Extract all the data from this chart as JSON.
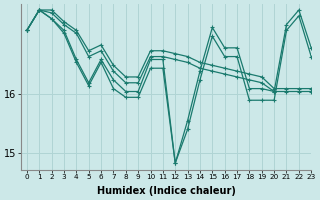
{
  "xlabel": "Humidex (Indice chaleur)",
  "ylabel": "",
  "bg_color": "#cce8e8",
  "line_color": "#1a7a6e",
  "grid_color": "#b0d4d4",
  "xlim": [
    -0.5,
    23
  ],
  "ylim": [
    14.7,
    17.55
  ],
  "yticks": [
    15,
    16
  ],
  "xticks": [
    0,
    1,
    2,
    3,
    4,
    5,
    6,
    7,
    8,
    9,
    10,
    11,
    12,
    13,
    14,
    15,
    16,
    17,
    18,
    19,
    20,
    21,
    22,
    23
  ],
  "series": [
    [
      17.1,
      17.45,
      17.45,
      17.25,
      17.1,
      16.75,
      16.85,
      16.5,
      16.3,
      16.3,
      16.75,
      16.75,
      16.7,
      16.65,
      16.55,
      16.5,
      16.45,
      16.4,
      16.35,
      16.3,
      16.1,
      16.1,
      16.1,
      16.1
    ],
    [
      17.1,
      17.45,
      17.4,
      17.2,
      17.05,
      16.65,
      16.75,
      16.4,
      16.2,
      16.2,
      16.65,
      16.65,
      16.6,
      16.55,
      16.45,
      16.4,
      16.35,
      16.3,
      16.25,
      16.2,
      16.05,
      16.05,
      16.05,
      16.05
    ],
    [
      17.1,
      17.45,
      17.3,
      17.1,
      16.6,
      16.2,
      16.6,
      16.25,
      16.05,
      16.05,
      16.6,
      16.6,
      14.82,
      15.55,
      16.4,
      17.15,
      16.8,
      16.8,
      16.1,
      16.1,
      16.05,
      17.2,
      17.45,
      16.8
    ],
    [
      17.1,
      17.45,
      17.3,
      17.05,
      16.55,
      16.15,
      16.55,
      16.1,
      15.95,
      15.95,
      16.45,
      16.45,
      14.82,
      15.4,
      16.25,
      17.0,
      16.65,
      16.65,
      15.9,
      15.9,
      15.9,
      17.1,
      17.35,
      16.65
    ]
  ],
  "marker": "+",
  "markersize": 3,
  "linewidth": 0.9
}
